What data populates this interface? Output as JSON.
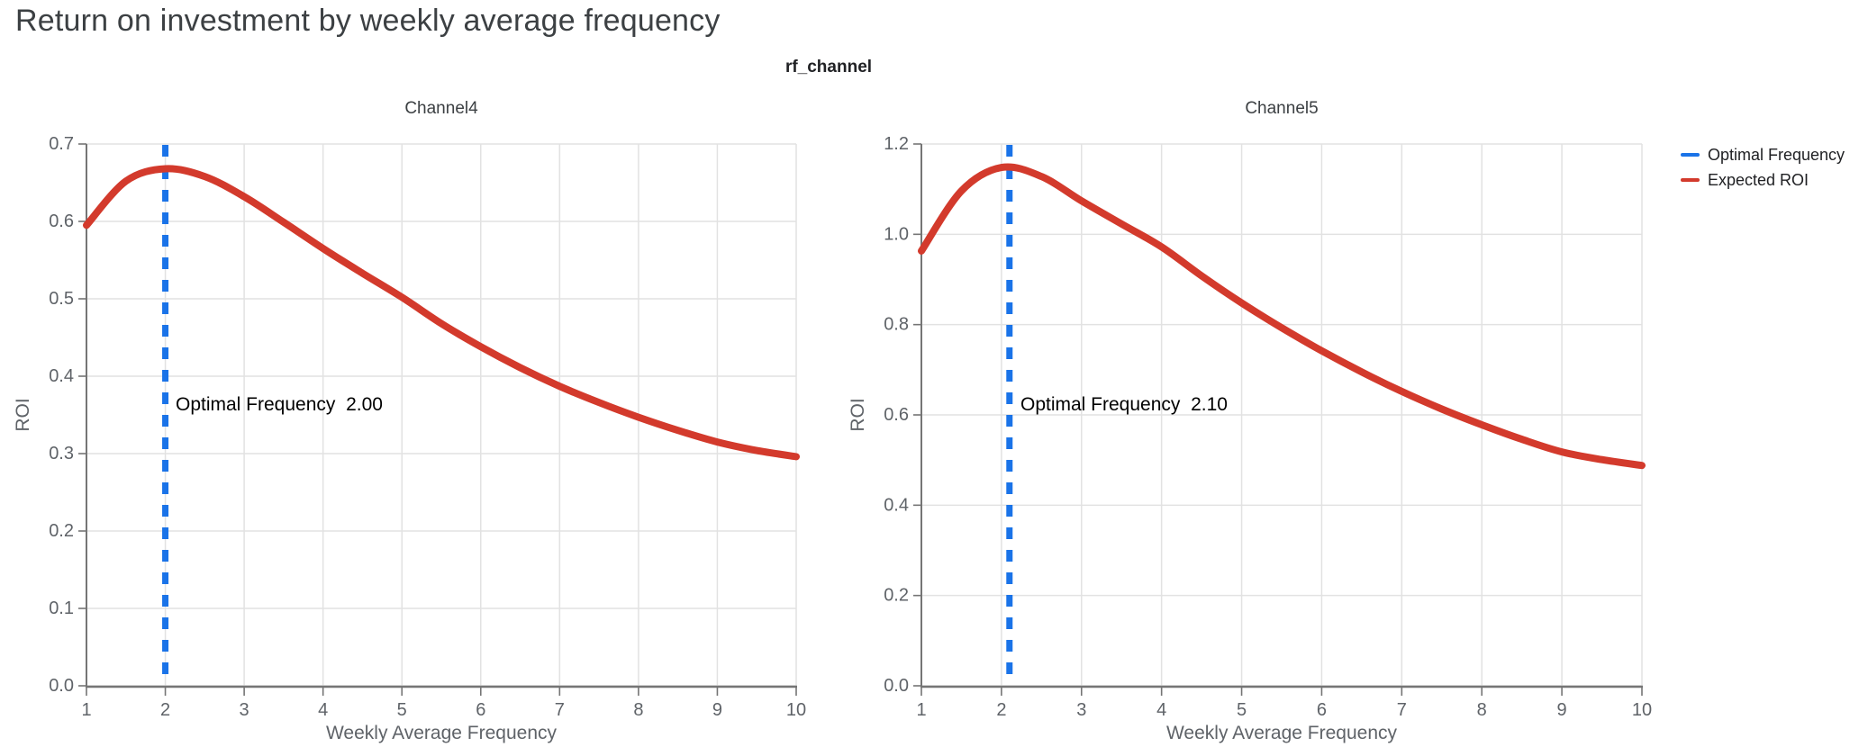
{
  "page": {
    "title": "Return on investment by weekly average frequency",
    "facet_title": "rf_channel"
  },
  "colors": {
    "expected_roi": "#D33A2C",
    "optimal_frequency": "#1A73E8",
    "grid": "#E2E2E2",
    "axis_line": "#757575",
    "tick_label": "#5F6368",
    "axis_title": "#5F6368",
    "channel_title": "#3C4043",
    "page_title": "#3C4043",
    "annotation": "#000000",
    "legend_text": "#202124"
  },
  "legend": {
    "position": "top-right",
    "items": [
      {
        "label": "Optimal Frequency",
        "color": "#1A73E8"
      },
      {
        "label": "Expected ROI",
        "color": "#D33A2C"
      }
    ]
  },
  "chart_data": [
    {
      "type": "line",
      "title": "Channel4",
      "xlabel": "Weekly Average Frequency",
      "ylabel": "ROI",
      "xlim": [
        1,
        10
      ],
      "ylim": [
        0,
        0.7
      ],
      "xticks": [
        1,
        2,
        3,
        4,
        5,
        6,
        7,
        8,
        9,
        10
      ],
      "yticks": [
        0.0,
        0.1,
        0.2,
        0.3,
        0.4,
        0.5,
        0.6,
        0.7
      ],
      "grid": true,
      "optimal_frequency": 2.0,
      "annotation_text": "Optimal Frequency  2.00",
      "series": [
        {
          "name": "Expected ROI",
          "x": [
            1,
            1.5,
            2,
            2.5,
            3,
            3.5,
            4,
            4.5,
            5,
            5.5,
            6,
            6.5,
            7,
            7.5,
            8,
            8.5,
            9,
            9.5,
            10
          ],
          "y": [
            0.595,
            0.652,
            0.668,
            0.658,
            0.632,
            0.599,
            0.565,
            0.533,
            0.502,
            0.468,
            0.438,
            0.411,
            0.387,
            0.366,
            0.347,
            0.33,
            0.315,
            0.304,
            0.296
          ]
        }
      ]
    },
    {
      "type": "line",
      "title": "Channel5",
      "xlabel": "Weekly Average Frequency",
      "ylabel": "ROI",
      "xlim": [
        1,
        10
      ],
      "ylim": [
        0,
        1.2
      ],
      "xticks": [
        1,
        2,
        3,
        4,
        5,
        6,
        7,
        8,
        9,
        10
      ],
      "yticks": [
        0.0,
        0.2,
        0.4,
        0.6,
        0.8,
        1.0,
        1.2
      ],
      "grid": true,
      "optimal_frequency": 2.1,
      "annotation_text": "Optimal Frequency  2.10",
      "series": [
        {
          "name": "Expected ROI",
          "x": [
            1,
            1.5,
            2,
            2.5,
            3,
            3.5,
            4,
            4.5,
            5,
            5.5,
            6,
            6.5,
            7,
            7.5,
            8,
            8.5,
            9,
            9.5,
            10
          ],
          "y": [
            0.963,
            1.096,
            1.148,
            1.128,
            1.074,
            1.023,
            0.972,
            0.908,
            0.848,
            0.793,
            0.742,
            0.695,
            0.652,
            0.613,
            0.578,
            0.546,
            0.518,
            0.501,
            0.488
          ]
        }
      ]
    }
  ]
}
